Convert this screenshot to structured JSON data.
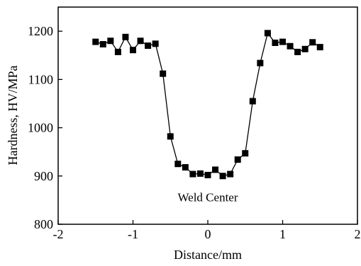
{
  "chart_data": {
    "type": "line",
    "title": "",
    "xlabel": "Distance/mm",
    "ylabel": "Hardness, HV/MPa",
    "xlim": [
      -2,
      2
    ],
    "ylim": [
      800,
      1250
    ],
    "xticks": [
      -2,
      -1,
      0,
      1,
      2
    ],
    "yticks": [
      800,
      900,
      1000,
      1100,
      1200
    ],
    "xtick_labels": [
      "-2",
      "-1",
      "0",
      "1",
      "2"
    ],
    "ytick_labels": [
      "800",
      "900",
      "1000",
      "1100",
      "1200"
    ],
    "grid": false,
    "legend": "none",
    "marker": "square",
    "color": "#000000",
    "annotations": [
      {
        "text": "Weld Center",
        "x": 0,
        "y": 848
      }
    ],
    "series": [
      {
        "x": [
          -1.5,
          -1.4,
          -1.3,
          -1.2,
          -1.1,
          -1.0,
          -0.9,
          -0.8,
          -0.7,
          -0.6,
          -0.5,
          -0.4,
          -0.3,
          -0.2,
          -0.1,
          0.0,
          0.1,
          0.2,
          0.3,
          0.4,
          0.5,
          0.6,
          0.7,
          0.8,
          0.9,
          1.0,
          1.1,
          1.2,
          1.3,
          1.4,
          1.5
        ],
        "y": [
          1178,
          1173,
          1180,
          1157,
          1188,
          1161,
          1180,
          1170,
          1174,
          1112,
          982,
          925,
          918,
          904,
          905,
          902,
          913,
          900,
          904,
          934,
          947,
          1055,
          1134,
          1196,
          1176,
          1178,
          1169,
          1157,
          1163,
          1177,
          1167
        ]
      }
    ]
  }
}
